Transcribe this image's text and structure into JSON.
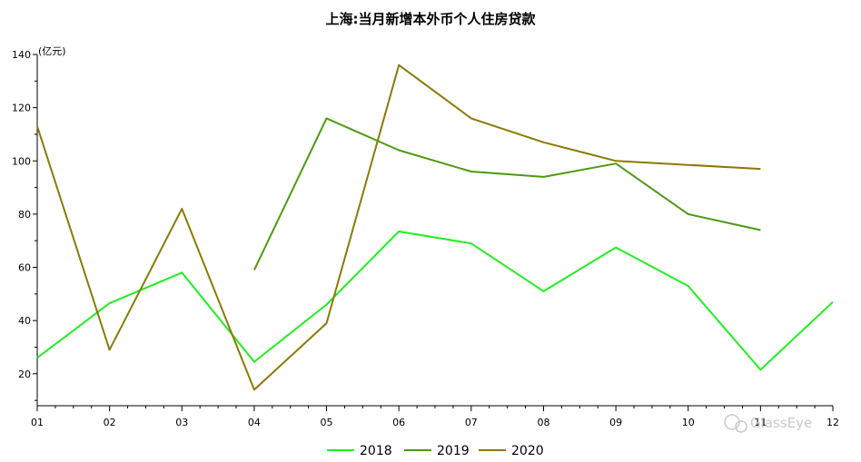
{
  "chart_data": {
    "type": "line",
    "title": "上海:当月新增本外币个人住房贷款",
    "unit_label": "(亿元)",
    "xlabel": "",
    "ylabel": "",
    "categories": [
      "01",
      "02",
      "03",
      "04",
      "05",
      "06",
      "07",
      "08",
      "09",
      "10",
      "11",
      "12"
    ],
    "y_ticks": [
      20,
      40,
      60,
      80,
      100,
      120,
      140
    ],
    "ylim": [
      8,
      140
    ],
    "grid": false,
    "legend_position": "bottom-center",
    "series": [
      {
        "name": "2018",
        "color": "#22ee22",
        "values": [
          26,
          46.5,
          58,
          24.5,
          46,
          73.5,
          69,
          51,
          67.5,
          53,
          21.5,
          47
        ]
      },
      {
        "name": "2019",
        "color": "#4c9a12",
        "values": [
          null,
          null,
          null,
          59,
          116,
          104,
          96,
          94,
          99,
          80,
          74,
          null
        ]
      },
      {
        "name": "2020",
        "color": "#8a7a05",
        "values": [
          113,
          29,
          82,
          14,
          39,
          136,
          116,
          107,
          100,
          98.5,
          97,
          null
        ]
      }
    ]
  },
  "watermark": "GlassEye"
}
